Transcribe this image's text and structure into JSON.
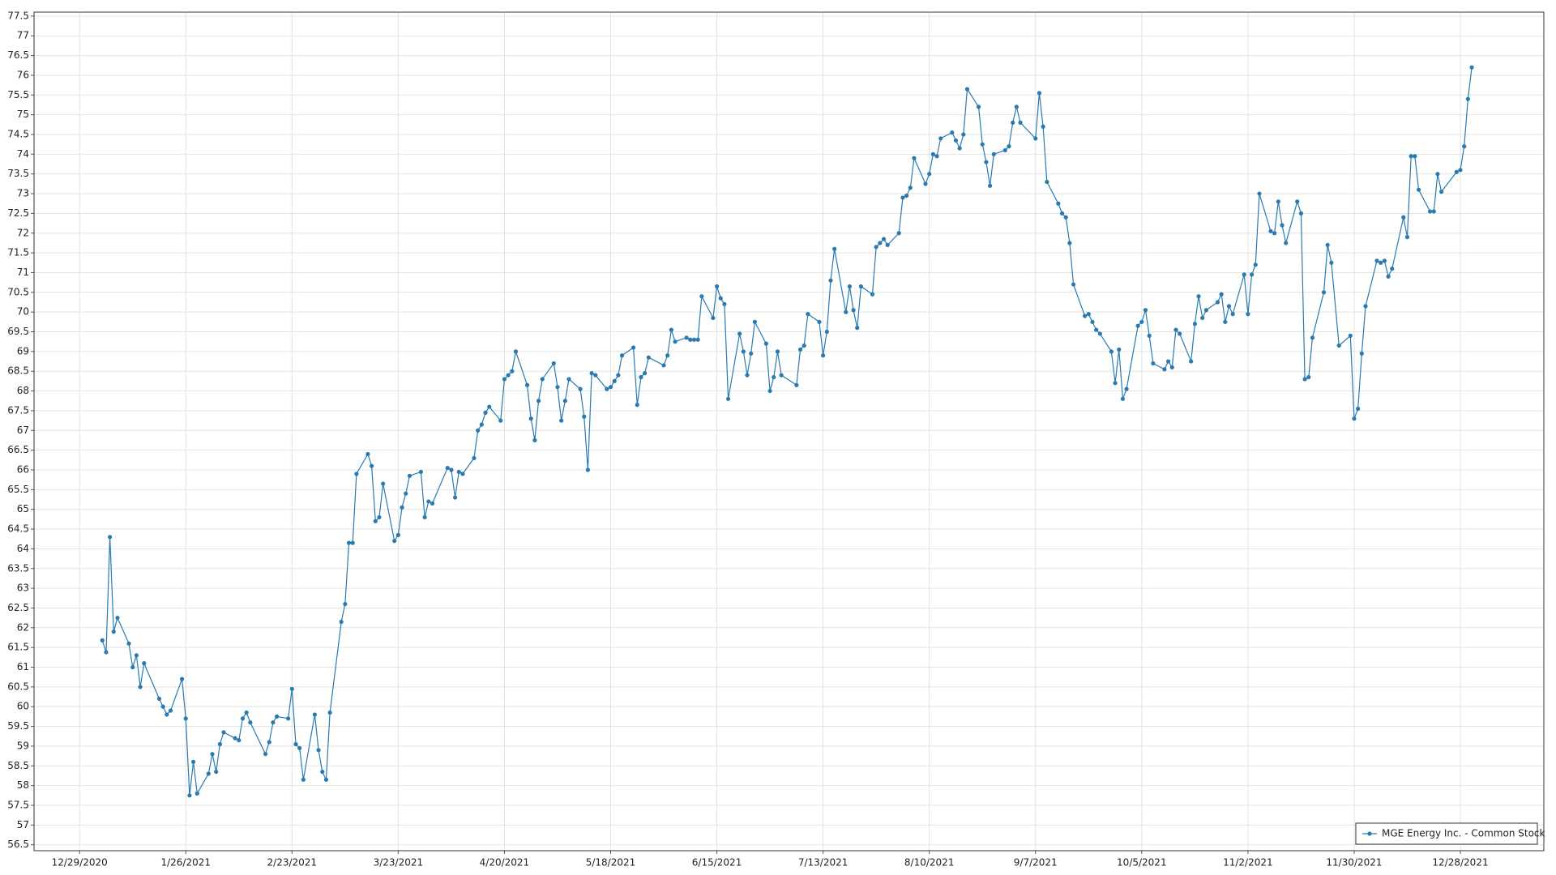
{
  "chart_data": {
    "type": "line",
    "x": [
      "1/4/2021",
      "1/5/2021",
      "1/6/2021",
      "1/7/2021",
      "1/8/2021",
      "1/11/2021",
      "1/12/2021",
      "1/13/2021",
      "1/14/2021",
      "1/15/2021",
      "1/19/2021",
      "1/20/2021",
      "1/21/2021",
      "1/22/2021",
      "1/25/2021",
      "1/26/2021",
      "1/27/2021",
      "1/28/2021",
      "1/29/2021",
      "2/1/2021",
      "2/2/2021",
      "2/3/2021",
      "2/4/2021",
      "2/5/2021",
      "2/8/2021",
      "2/9/2021",
      "2/10/2021",
      "2/11/2021",
      "2/12/2021",
      "2/16/2021",
      "2/17/2021",
      "2/18/2021",
      "2/19/2021",
      "2/22/2021",
      "2/23/2021",
      "2/24/2021",
      "2/25/2021",
      "2/26/2021",
      "3/1/2021",
      "3/2/2021",
      "3/3/2021",
      "3/4/2021",
      "3/5/2021",
      "3/8/2021",
      "3/9/2021",
      "3/10/2021",
      "3/11/2021",
      "3/12/2021",
      "3/15/2021",
      "3/16/2021",
      "3/17/2021",
      "3/18/2021",
      "3/19/2021",
      "3/22/2021",
      "3/23/2021",
      "3/24/2021",
      "3/25/2021",
      "3/26/2021",
      "3/29/2021",
      "3/30/2021",
      "3/31/2021",
      "4/1/2021",
      "4/5/2021",
      "4/6/2021",
      "4/7/2021",
      "4/8/2021",
      "4/9/2021",
      "4/12/2021",
      "4/13/2021",
      "4/14/2021",
      "4/15/2021",
      "4/16/2021",
      "4/19/2021",
      "4/20/2021",
      "4/21/2021",
      "4/22/2021",
      "4/23/2021",
      "4/26/2021",
      "4/27/2021",
      "4/28/2021",
      "4/29/2021",
      "4/30/2021",
      "5/3/2021",
      "5/4/2021",
      "5/5/2021",
      "5/6/2021",
      "5/7/2021",
      "5/10/2021",
      "5/11/2021",
      "5/12/2021",
      "5/13/2021",
      "5/14/2021",
      "5/17/2021",
      "5/18/2021",
      "5/19/2021",
      "5/20/2021",
      "5/21/2021",
      "5/24/2021",
      "5/25/2021",
      "5/26/2021",
      "5/27/2021",
      "5/28/2021",
      "6/1/2021",
      "6/2/2021",
      "6/3/2021",
      "6/4/2021",
      "6/7/2021",
      "6/8/2021",
      "6/9/2021",
      "6/10/2021",
      "6/11/2021",
      "6/14/2021",
      "6/15/2021",
      "6/16/2021",
      "6/17/2021",
      "6/18/2021",
      "6/21/2021",
      "6/22/2021",
      "6/23/2021",
      "6/24/2021",
      "6/25/2021",
      "6/28/2021",
      "6/29/2021",
      "6/30/2021",
      "7/1/2021",
      "7/2/2021",
      "7/6/2021",
      "7/7/2021",
      "7/8/2021",
      "7/9/2021",
      "7/12/2021",
      "7/13/2021",
      "7/14/2021",
      "7/15/2021",
      "7/16/2021",
      "7/19/2021",
      "7/20/2021",
      "7/21/2021",
      "7/22/2021",
      "7/23/2021",
      "7/26/2021",
      "7/27/2021",
      "7/28/2021",
      "7/29/2021",
      "7/30/2021",
      "8/2/2021",
      "8/3/2021",
      "8/4/2021",
      "8/5/2021",
      "8/6/2021",
      "8/9/2021",
      "8/10/2021",
      "8/11/2021",
      "8/12/2021",
      "8/13/2021",
      "8/16/2021",
      "8/17/2021",
      "8/18/2021",
      "8/19/2021",
      "8/20/2021",
      "8/23/2021",
      "8/24/2021",
      "8/25/2021",
      "8/26/2021",
      "8/27/2021",
      "8/30/2021",
      "8/31/2021",
      "9/1/2021",
      "9/2/2021",
      "9/3/2021",
      "9/7/2021",
      "9/8/2021",
      "9/9/2021",
      "9/10/2021",
      "9/13/2021",
      "9/14/2021",
      "9/15/2021",
      "9/16/2021",
      "9/17/2021",
      "9/20/2021",
      "9/21/2021",
      "9/22/2021",
      "9/23/2021",
      "9/24/2021",
      "9/27/2021",
      "9/28/2021",
      "9/29/2021",
      "9/30/2021",
      "10/1/2021",
      "10/4/2021",
      "10/5/2021",
      "10/6/2021",
      "10/7/2021",
      "10/8/2021",
      "10/11/2021",
      "10/12/2021",
      "10/13/2021",
      "10/14/2021",
      "10/15/2021",
      "10/18/2021",
      "10/19/2021",
      "10/20/2021",
      "10/21/2021",
      "10/22/2021",
      "10/25/2021",
      "10/26/2021",
      "10/27/2021",
      "10/28/2021",
      "10/29/2021",
      "11/1/2021",
      "11/2/2021",
      "11/3/2021",
      "11/4/2021",
      "11/5/2021",
      "11/8/2021",
      "11/9/2021",
      "11/10/2021",
      "11/11/2021",
      "11/12/2021",
      "11/15/2021",
      "11/16/2021",
      "11/17/2021",
      "11/18/2021",
      "11/19/2021",
      "11/22/2021",
      "11/23/2021",
      "11/24/2021",
      "11/26/2021",
      "11/29/2021",
      "11/30/2021",
      "12/1/2021",
      "12/2/2021",
      "12/3/2021",
      "12/6/2021",
      "12/7/2021",
      "12/8/2021",
      "12/9/2021",
      "12/10/2021",
      "12/13/2021",
      "12/14/2021",
      "12/15/2021",
      "12/16/2021",
      "12/17/2021",
      "12/20/2021",
      "12/21/2021",
      "12/22/2021",
      "12/23/2021",
      "12/27/2021",
      "12/28/2021",
      "12/29/2021",
      "12/30/2021",
      "12/31/2021"
    ],
    "series": [
      {
        "name": "MGE Energy Inc. - Common Stock",
        "color": "#2a7ab0",
        "values": [
          61.68,
          61.38,
          64.3,
          61.9,
          62.25,
          61.6,
          61.0,
          61.3,
          60.5,
          61.1,
          60.2,
          60.0,
          59.8,
          59.9,
          60.7,
          59.7,
          57.75,
          58.6,
          57.8,
          58.3,
          58.8,
          58.35,
          59.05,
          59.35,
          59.2,
          59.15,
          59.7,
          59.85,
          59.6,
          58.8,
          59.1,
          59.6,
          59.75,
          59.7,
          60.45,
          59.05,
          58.95,
          58.15,
          59.8,
          58.9,
          58.35,
          58.15,
          59.85,
          62.15,
          62.6,
          64.15,
          64.15,
          65.9,
          66.4,
          66.1,
          64.7,
          64.8,
          65.65,
          64.2,
          64.35,
          65.05,
          65.4,
          65.85,
          65.95,
          64.8,
          65.2,
          65.15,
          66.05,
          66.0,
          65.3,
          65.95,
          65.9,
          66.3,
          67.0,
          67.15,
          67.45,
          67.6,
          67.25,
          68.3,
          68.4,
          68.5,
          69.0,
          68.15,
          67.3,
          66.75,
          67.75,
          68.3,
          68.7,
          68.1,
          67.25,
          67.75,
          68.3,
          68.05,
          67.35,
          66.0,
          68.45,
          68.4,
          68.05,
          68.1,
          68.25,
          68.4,
          68.9,
          69.1,
          67.65,
          68.35,
          68.45,
          68.85,
          68.65,
          68.9,
          69.55,
          69.25,
          69.35,
          69.3,
          69.3,
          69.3,
          70.4,
          69.85,
          70.65,
          70.35,
          70.2,
          67.8,
          69.45,
          69.0,
          68.4,
          68.95,
          69.75,
          69.2,
          68.0,
          68.35,
          69.0,
          68.4,
          68.15,
          69.05,
          69.15,
          69.95,
          69.75,
          68.9,
          69.5,
          70.8,
          71.6,
          70.0,
          70.65,
          70.05,
          69.6,
          70.65,
          70.45,
          71.65,
          71.75,
          71.85,
          71.7,
          72.0,
          72.9,
          72.95,
          73.15,
          73.9,
          73.25,
          73.5,
          74.0,
          73.95,
          74.4,
          74.55,
          74.35,
          74.15,
          74.5,
          75.65,
          75.2,
          74.25,
          73.8,
          73.2,
          74.0,
          74.1,
          74.2,
          74.8,
          75.2,
          74.8,
          74.4,
          75.55,
          74.7,
          73.3,
          72.75,
          72.5,
          72.4,
          71.75,
          70.7,
          69.9,
          69.95,
          69.75,
          69.55,
          69.45,
          69.0,
          68.2,
          69.05,
          67.8,
          68.05,
          69.65,
          69.75,
          70.05,
          69.4,
          68.7,
          68.55,
          68.75,
          68.6,
          69.55,
          69.45,
          68.75,
          69.7,
          70.4,
          69.85,
          70.05,
          70.25,
          70.45,
          69.75,
          70.15,
          69.95,
          70.95,
          69.95,
          70.95,
          71.2,
          73.0,
          72.05,
          72.0,
          72.8,
          72.2,
          71.75,
          72.8,
          72.5,
          68.3,
          68.35,
          69.35,
          70.5,
          71.7,
          71.25,
          69.15,
          69.4,
          67.3,
          67.55,
          68.95,
          70.15,
          71.3,
          71.25,
          71.3,
          70.9,
          71.1,
          72.4,
          71.9,
          73.95,
          73.95,
          73.1,
          72.55,
          72.55,
          73.5,
          73.05,
          73.55,
          73.6,
          74.2,
          75.4,
          76.2
        ]
      }
    ],
    "xlim": [
      "12/17/2020",
      "1/19/2022"
    ],
    "xticks": [
      "12/29/2020",
      "1/26/2021",
      "2/23/2021",
      "3/23/2021",
      "4/20/2021",
      "5/18/2021",
      "6/15/2021",
      "7/13/2021",
      "8/10/2021",
      "9/7/2021",
      "10/5/2021",
      "11/2/2021",
      "11/30/2021",
      "12/28/2021"
    ],
    "ylim": [
      56.35,
      77.6
    ],
    "yticks": [
      56.5,
      57,
      57.5,
      58,
      58.5,
      59,
      59.5,
      60,
      60.5,
      61,
      61.5,
      62,
      62.5,
      63,
      63.5,
      64,
      64.5,
      65,
      65.5,
      66,
      66.5,
      67,
      67.5,
      68,
      68.5,
      69,
      69.5,
      70,
      70.5,
      71,
      71.5,
      72,
      72.5,
      73,
      73.5,
      74,
      74.5,
      75,
      75.5,
      76,
      76.5,
      77,
      77.5
    ],
    "grid": true,
    "legend": "bottom-right"
  }
}
